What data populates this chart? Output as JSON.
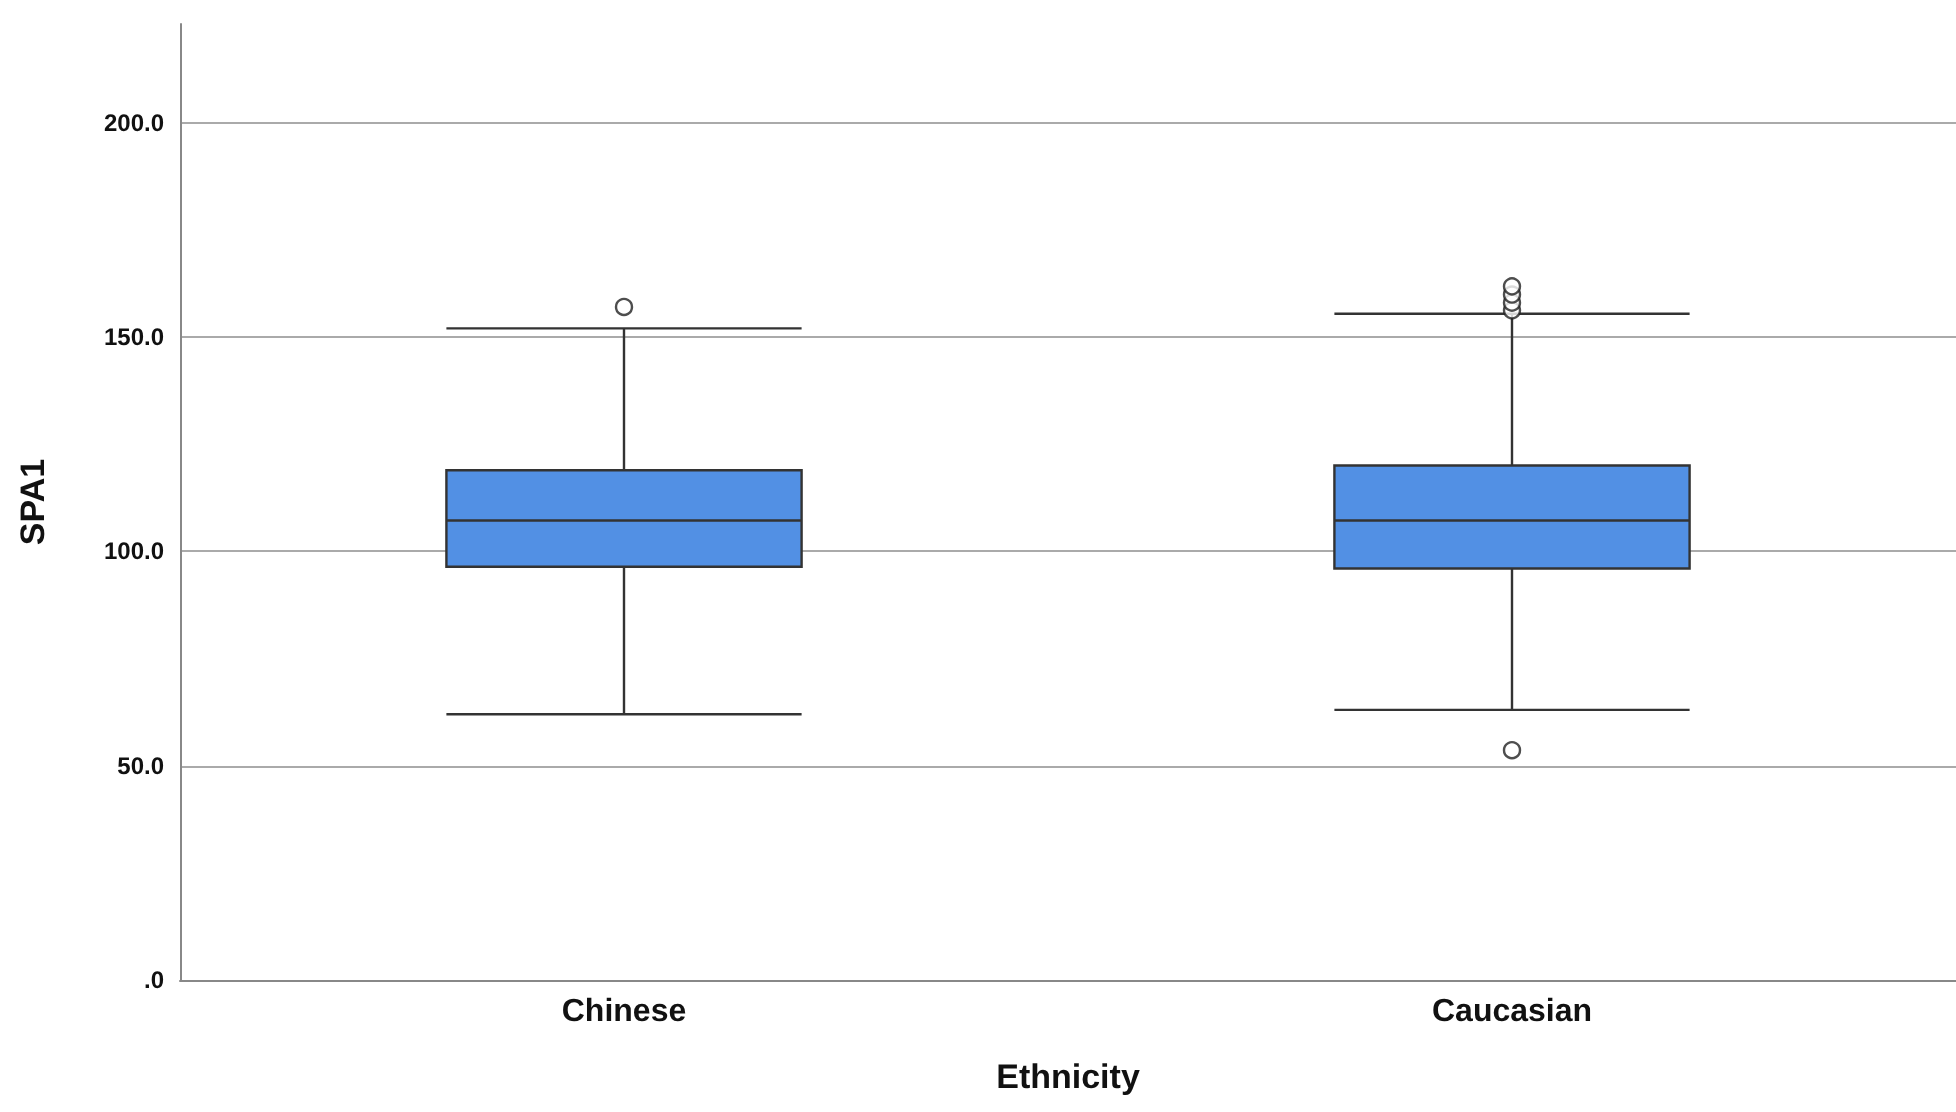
{
  "chart_data": {
    "type": "box",
    "xlabel": "Ethnicity",
    "ylabel": "SPA1",
    "categories": [
      "Chinese",
      "Caucasian"
    ],
    "color": "#5290e4",
    "boxes": [
      {
        "low": 62,
        "q1": 96.4,
        "median": 107.2,
        "q3": 118.9,
        "high": 152,
        "outliers": [
          157
        ]
      },
      {
        "low": 63,
        "q1": 96,
        "median": 107.2,
        "q3": 120,
        "high": 155.4,
        "outliers": [
          156.2,
          158,
          159.9,
          161.8,
          53.6
        ]
      }
    ],
    "ylim": [
      0,
      223
    ],
    "yticks": [
      {
        "value": 0,
        "label": ".0"
      },
      {
        "value": 50,
        "label": "50.0"
      },
      {
        "value": 100,
        "label": "100.0"
      },
      {
        "value": 150,
        "label": "150.0"
      },
      {
        "value": 200,
        "label": "200.0"
      }
    ],
    "grid": "y"
  }
}
